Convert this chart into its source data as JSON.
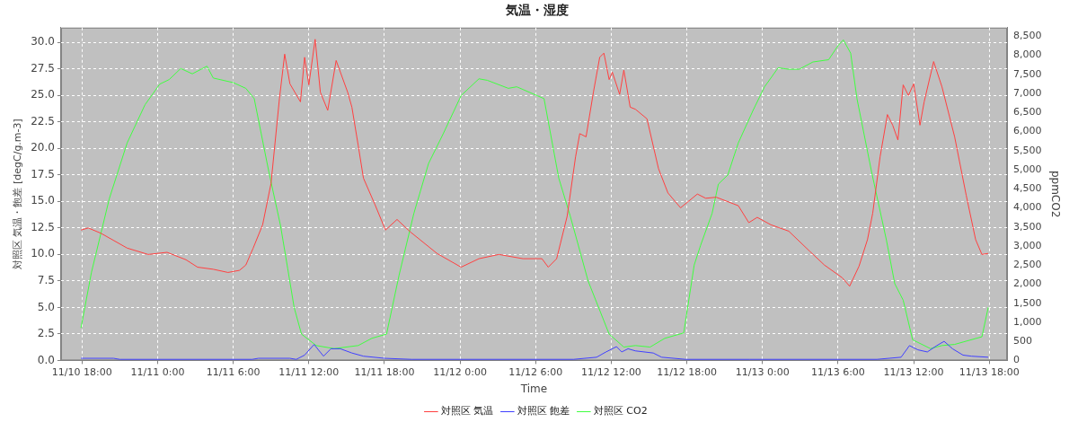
{
  "chart_data": {
    "type": "line",
    "title": "気温・湿度",
    "xlabel": "Time",
    "ylabel": "対照区 気温・飽差 [degC/g.m-3]",
    "y2label": "ppmCO2",
    "xlim": [
      "--11-10T16:20",
      "--11-13T19:25"
    ],
    "xticks": [
      {
        "value": "--11-10T18:00",
        "label": "11/10 18:00"
      },
      {
        "value": "--11-11T00:00",
        "label": "11/11 0:00"
      },
      {
        "value": "--11-11T06:00",
        "label": "11/11 6:00"
      },
      {
        "value": "--11-11T12:00",
        "label": "11/11 12:00"
      },
      {
        "value": "--11-11T18:00",
        "label": "11/11 18:00"
      },
      {
        "value": "--11-12T00:00",
        "label": "11/12 0:00"
      },
      {
        "value": "--11-12T06:00",
        "label": "11/12 6:00"
      },
      {
        "value": "--11-12T12:00",
        "label": "11/12 12:00"
      },
      {
        "value": "--11-12T18:00",
        "label": "11/12 18:00"
      },
      {
        "value": "--11-13T00:00",
        "label": "11/13 0:00"
      },
      {
        "value": "--11-13T06:00",
        "label": "11/13 6:00"
      },
      {
        "value": "--11-13T12:00",
        "label": "11/13 12:00"
      },
      {
        "value": "--11-13T18:00",
        "label": "11/13 18:00"
      }
    ],
    "ylim": [
      0,
      31.4
    ],
    "yticks": [
      {
        "value": 0,
        "label": "0.0"
      },
      {
        "value": 2.5,
        "label": "2.5"
      },
      {
        "value": 5,
        "label": "5.0"
      },
      {
        "value": 7.5,
        "label": "7.5"
      },
      {
        "value": 10,
        "label": "10.0"
      },
      {
        "value": 12.5,
        "label": "12.5"
      },
      {
        "value": 15,
        "label": "15.0"
      },
      {
        "value": 17.5,
        "label": "17.5"
      },
      {
        "value": 20,
        "label": "20.0"
      },
      {
        "value": 22.5,
        "label": "22.5"
      },
      {
        "value": 25,
        "label": "25.0"
      },
      {
        "value": 27.5,
        "label": "27.5"
      },
      {
        "value": 30,
        "label": "30.0"
      }
    ],
    "y2lim": [
      0,
      8720
    ],
    "y2ticks": [
      {
        "value": 0,
        "label": "0"
      },
      {
        "value": 500,
        "label": "500"
      },
      {
        "value": 1000,
        "label": "1,000"
      },
      {
        "value": 1500,
        "label": "1,500"
      },
      {
        "value": 2000,
        "label": "2,000"
      },
      {
        "value": 2500,
        "label": "2,500"
      },
      {
        "value": 3000,
        "label": "3,000"
      },
      {
        "value": 3500,
        "label": "3,500"
      },
      {
        "value": 4000,
        "label": "4,000"
      },
      {
        "value": 4500,
        "label": "4,500"
      },
      {
        "value": 5000,
        "label": "5,000"
      },
      {
        "value": 5500,
        "label": "5,500"
      },
      {
        "value": 6000,
        "label": "6,000"
      },
      {
        "value": 6500,
        "label": "6,500"
      },
      {
        "value": 7000,
        "label": "7,000"
      },
      {
        "value": 7500,
        "label": "7,500"
      },
      {
        "value": 8000,
        "label": "8,000"
      },
      {
        "value": 8500,
        "label": "8,500"
      }
    ],
    "grid": true,
    "legend": "bottom",
    "marker": "none",
    "line_style": "solid",
    "series": [
      {
        "name": "対照区 気温",
        "color": "#ff4040",
        "x": [
          "--11-10T17:55",
          "--11-10T18:30",
          "--11-10T19:30",
          "--11-10T21:35",
          "--11-10T23:15",
          "--11-11T00:45",
          "--11-11T02:15",
          "--11-11T03:10",
          "--11-11T04:25",
          "--11-11T05:35",
          "--11-11T06:30",
          "--11-11T07:00",
          "--11-11T07:35",
          "--11-11T08:20",
          "--11-11T09:00",
          "--11-11T09:40",
          "--11-11T10:05",
          "--11-11T10:30",
          "--11-11T11:20",
          "--11-11T11:40",
          "--11-11T12:00",
          "--11-11T12:30",
          "--11-11T12:55",
          "--11-11T13:30",
          "--11-11T14:10",
          "--11-11T15:05",
          "--11-11T15:25",
          "--11-11T15:55",
          "--11-11T16:20",
          "--11-11T17:15",
          "--11-11T18:05",
          "--11-11T19:00",
          "--11-11T20:05",
          "--11-11T22:10",
          "--11-12T00:05",
          "--11-12T01:30",
          "--11-12T03:05",
          "--11-12T05:00",
          "--11-12T06:30",
          "--11-12T07:00",
          "--11-12T07:40",
          "--11-12T08:30",
          "--11-12T09:10",
          "--11-12T09:30",
          "--11-12T10:00",
          "--11-12T10:35",
          "--11-12T11:05",
          "--11-12T11:25",
          "--11-12T11:50",
          "--11-12T12:05",
          "--11-12T12:40",
          "--11-12T13:00",
          "--11-12T13:30",
          "--11-12T13:55",
          "--11-12T14:50",
          "--11-12T15:45",
          "--11-12T16:30",
          "--11-12T17:30",
          "--11-12T18:50",
          "--11-12T19:30",
          "--11-12T20:20",
          "--11-12T22:05",
          "--11-12T22:55",
          "--11-12T23:35",
          "--11-13T00:40",
          "--11-13T02:05",
          "--11-13T03:45",
          "--11-13T04:55",
          "--11-13T06:20",
          "--11-13T06:55",
          "--11-13T07:40",
          "--11-13T08:20",
          "--11-13T08:45",
          "--11-13T09:20",
          "--11-13T09:55",
          "--11-13T10:20",
          "--11-13T10:45",
          "--11-13T11:10",
          "--11-13T11:35",
          "--11-13T12:00",
          "--11-13T12:30",
          "--11-13T12:50",
          "--11-13T13:35",
          "--11-13T14:15",
          "--11-13T15:15",
          "--11-13T16:10",
          "--11-13T16:55",
          "--11-13T17:25",
          "--11-13T17:55"
        ],
        "values": [
          12.3,
          12.5,
          12.0,
          10.6,
          10.0,
          10.2,
          9.5,
          8.8,
          8.6,
          8.3,
          8.5,
          9.0,
          10.6,
          12.8,
          16.7,
          24.7,
          28.9,
          26.1,
          24.4,
          28.6,
          26.0,
          30.3,
          25.3,
          23.6,
          28.3,
          25.3,
          23.9,
          20.3,
          17.2,
          14.7,
          12.3,
          13.3,
          12.1,
          10.1,
          8.8,
          9.6,
          10.0,
          9.6,
          9.6,
          8.8,
          9.6,
          13.6,
          19.2,
          21.4,
          21.1,
          25.3,
          28.6,
          29.0,
          26.5,
          27.2,
          25.1,
          27.4,
          23.9,
          23.7,
          22.8,
          18.1,
          15.8,
          14.4,
          15.7,
          15.3,
          15.4,
          14.6,
          13.0,
          13.5,
          12.8,
          12.2,
          10.3,
          9.0,
          7.8,
          7.0,
          8.9,
          11.4,
          13.9,
          19.2,
          23.2,
          22.2,
          20.8,
          26.0,
          25.0,
          26.1,
          22.2,
          24.4,
          28.2,
          25.8,
          21.1,
          15.6,
          11.4,
          10.0,
          10.1
        ]
      },
      {
        "name": "対照区 飽差",
        "color": "#4040ff",
        "x": [
          "--11-10T17:55",
          "--11-10T20:30",
          "--11-10T21:00",
          "--11-11T07:30",
          "--11-11T08:00",
          "--11-11T10:30",
          "--11-11T11:00",
          "--11-11T11:40",
          "--11-11T12:25",
          "--11-11T13:10",
          "--11-11T13:45",
          "--11-11T14:30",
          "--11-11T15:25",
          "--11-11T16:20",
          "--11-11T18:00",
          "--11-11T20:10",
          "--11-12T09:00",
          "--11-12T10:50",
          "--11-12T11:35",
          "--11-12T12:25",
          "--11-12T12:50",
          "--11-12T13:20",
          "--11-12T13:55",
          "--11-12T15:20",
          "--11-12T16:00",
          "--11-12T17:55",
          "--11-12T23:00",
          "--11-13T00:00",
          "--11-13T09:05",
          "--11-13T11:00",
          "--11-13T11:40",
          "--11-13T12:20",
          "--11-13T13:05",
          "--11-13T13:50",
          "--11-13T14:25",
          "--11-13T15:05",
          "--11-13T15:55",
          "--11-13T16:35",
          "--11-13T17:55"
        ],
        "values": [
          0.2,
          0.2,
          0.1,
          0.1,
          0.2,
          0.2,
          0.1,
          0.5,
          1.5,
          0.4,
          1.1,
          1.1,
          0.7,
          0.4,
          0.2,
          0.1,
          0.1,
          0.3,
          0.8,
          1.3,
          0.8,
          1.1,
          0.9,
          0.7,
          0.3,
          0.1,
          0.1,
          0.1,
          0.1,
          0.3,
          1.4,
          1.0,
          0.8,
          1.4,
          1.8,
          1.1,
          0.5,
          0.4,
          0.3
        ]
      },
      {
        "name": "対照区 CO2",
        "color": "#40ff40",
        "axis": "y2",
        "x": [
          "--11-10T17:55",
          "--11-10T18:45",
          "--11-10T20:10",
          "--11-10T21:35",
          "--11-10T23:00",
          "--11-11T00:10",
          "--11-11T00:55",
          "--11-11T01:50",
          "--11-11T02:45",
          "--11-11T03:55",
          "--11-11T04:25",
          "--11-11T06:00",
          "--11-11T07:00",
          "--11-11T07:40",
          "--11-11T08:50",
          "--11-11T09:45",
          "--11-11T10:20",
          "--11-11T10:50",
          "--11-11T11:25",
          "--11-11T12:35",
          "--11-11T14:00",
          "--11-11T15:55",
          "--11-11T17:00",
          "--11-11T18:10",
          "--11-11T19:10",
          "--11-11T20:20",
          "--11-11T21:30",
          "--11-11T22:40",
          "--11-12T00:05",
          "--11-12T01:30",
          "--11-12T02:10",
          "--11-12T03:50",
          "--11-12T04:30",
          "--11-12T06:40",
          "--11-12T07:50",
          "--11-12T08:45",
          "--11-12T10:10",
          "--11-12T11:50",
          "--11-12T13:00",
          "--11-12T13:55",
          "--11-12T15:05",
          "--11-12T16:15",
          "--11-12T17:45",
          "--11-12T18:35",
          "--11-12T19:05",
          "--11-12T20:00",
          "--11-12T20:30",
          "--11-12T21:15",
          "--11-12T22:05",
          "--11-12T23:15",
          "--11-13T00:10",
          "--11-13T01:15",
          "--11-13T02:05",
          "--11-13T02:55",
          "--11-13T04:00",
          "--11-13T05:15",
          "--11-13T06:00",
          "--11-13T06:25",
          "--11-13T07:00",
          "--11-13T07:30",
          "--11-13T08:40",
          "--11-13T09:50",
          "--11-13T10:30",
          "--11-13T11:10",
          "--11-13T11:55",
          "--11-13T13:20",
          "--11-13T14:15",
          "--11-13T15:15",
          "--11-13T17:25",
          "--11-13T17:55"
        ],
        "values": [
          850,
          2310,
          4240,
          5700,
          6700,
          7240,
          7360,
          7650,
          7510,
          7710,
          7400,
          7280,
          7130,
          6860,
          4930,
          3540,
          2390,
          1390,
          690,
          390,
          310,
          390,
          580,
          690,
          2240,
          3850,
          5160,
          5940,
          6940,
          7380,
          7340,
          7130,
          7170,
          6860,
          4780,
          3780,
          2080,
          690,
          350,
          390,
          350,
          580,
          720,
          2500,
          3010,
          3850,
          4620,
          4860,
          5700,
          6550,
          7170,
          7670,
          7630,
          7630,
          7820,
          7880,
          8250,
          8400,
          8050,
          6860,
          4930,
          3160,
          2010,
          1580,
          540,
          310,
          390,
          420,
          620,
          1390
        ]
      }
    ]
  }
}
